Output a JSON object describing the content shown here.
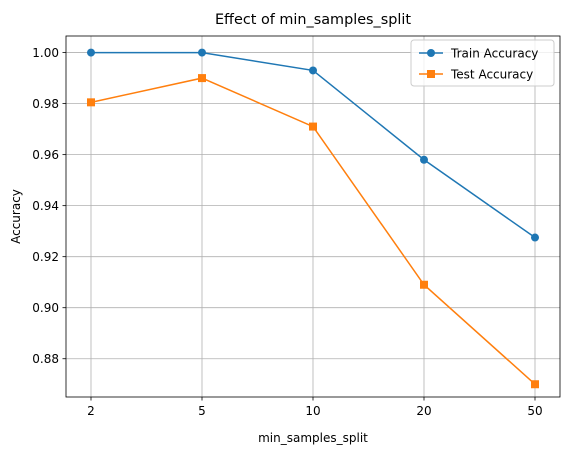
{
  "chart_data": {
    "type": "line",
    "title": "Effect of min_samples_split",
    "xlabel": "min_samples_split",
    "ylabel": "Accuracy",
    "categories": [
      "2",
      "5",
      "10",
      "20",
      "50"
    ],
    "ylim": [
      0.865,
      1.0065
    ],
    "yticks": [
      "0.88",
      "0.90",
      "0.92",
      "0.94",
      "0.96",
      "0.98",
      "1.00"
    ],
    "ytick_values": [
      0.88,
      0.9,
      0.92,
      0.94,
      0.96,
      0.98,
      1.0
    ],
    "grid": true,
    "legend_position": "top-right",
    "series": [
      {
        "name": "Train Accuracy",
        "color": "#1f77b4",
        "marker": "circle",
        "values": [
          1.0,
          1.0,
          0.993,
          0.958,
          0.9275
        ]
      },
      {
        "name": "Test Accuracy",
        "color": "#ff7f0e",
        "marker": "square",
        "values": [
          0.9805,
          0.99,
          0.971,
          0.909,
          0.87
        ]
      }
    ]
  }
}
